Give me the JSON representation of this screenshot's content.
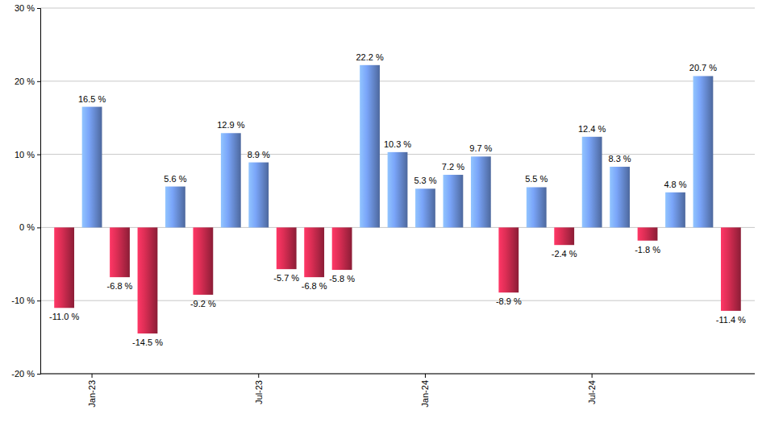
{
  "chart_data": {
    "type": "bar",
    "categories": [
      null,
      "Jan-23",
      null,
      null,
      null,
      null,
      null,
      "Jul-23",
      null,
      null,
      null,
      null,
      null,
      "Jan-24",
      null,
      null,
      null,
      null,
      null,
      "Jul-24",
      null,
      null,
      null,
      null,
      null
    ],
    "values": [
      -11.0,
      16.5,
      -6.8,
      -14.5,
      5.6,
      -9.2,
      12.9,
      8.9,
      -5.7,
      -6.8,
      -5.8,
      22.2,
      10.3,
      5.3,
      7.2,
      9.7,
      -8.9,
      5.5,
      -2.4,
      12.4,
      8.3,
      -1.8,
      4.8,
      20.7,
      -11.4
    ],
    "value_labels": [
      "-11.0 %",
      "16.5 %",
      "-6.8 %",
      "-14.5 %",
      "5.6 %",
      "-9.2 %",
      "12.9 %",
      "8.9 %",
      "-5.7 %",
      "-6.8 %",
      "-5.8 %",
      "22.2 %",
      "10.3 %",
      "5.3 %",
      "7.2 %",
      "9.7 %",
      "-8.9 %",
      "5.5 %",
      "-2.4 %",
      "12.4 %",
      "8.3 %",
      "-1.8 %",
      "4.8 %",
      "20.7 %",
      "-11.4 %"
    ],
    "colors": [
      "#c0284a",
      "#6a8fd8",
      "#c0284a",
      "#c0284a",
      "#6a8fd8",
      "#c0284a",
      "#6a8fd8",
      "#6a8fd8",
      "#c0284a",
      "#c0284a",
      "#c0284a",
      "#6a8fd8",
      "#6a8fd8",
      "#6a8fd8",
      "#6a8fd8",
      "#6a8fd8",
      "#c0284a",
      "#6a8fd8",
      "#c0284a",
      "#6a8fd8",
      "#6a8fd8",
      "#c0284a",
      "#6a8fd8",
      "#6a8fd8",
      "#c0284a"
    ],
    "ylim": [
      -20,
      30
    ],
    "yticks": [
      {
        "value": -20,
        "label": "-20 %"
      },
      {
        "value": -10,
        "label": "-10 %"
      },
      {
        "value": 0,
        "label": "0 %"
      },
      {
        "value": 10,
        "label": "10 %"
      },
      {
        "value": 20,
        "label": "20 %"
      },
      {
        "value": 30,
        "label": "30 %"
      }
    ],
    "grid": true,
    "data_labels": true
  }
}
